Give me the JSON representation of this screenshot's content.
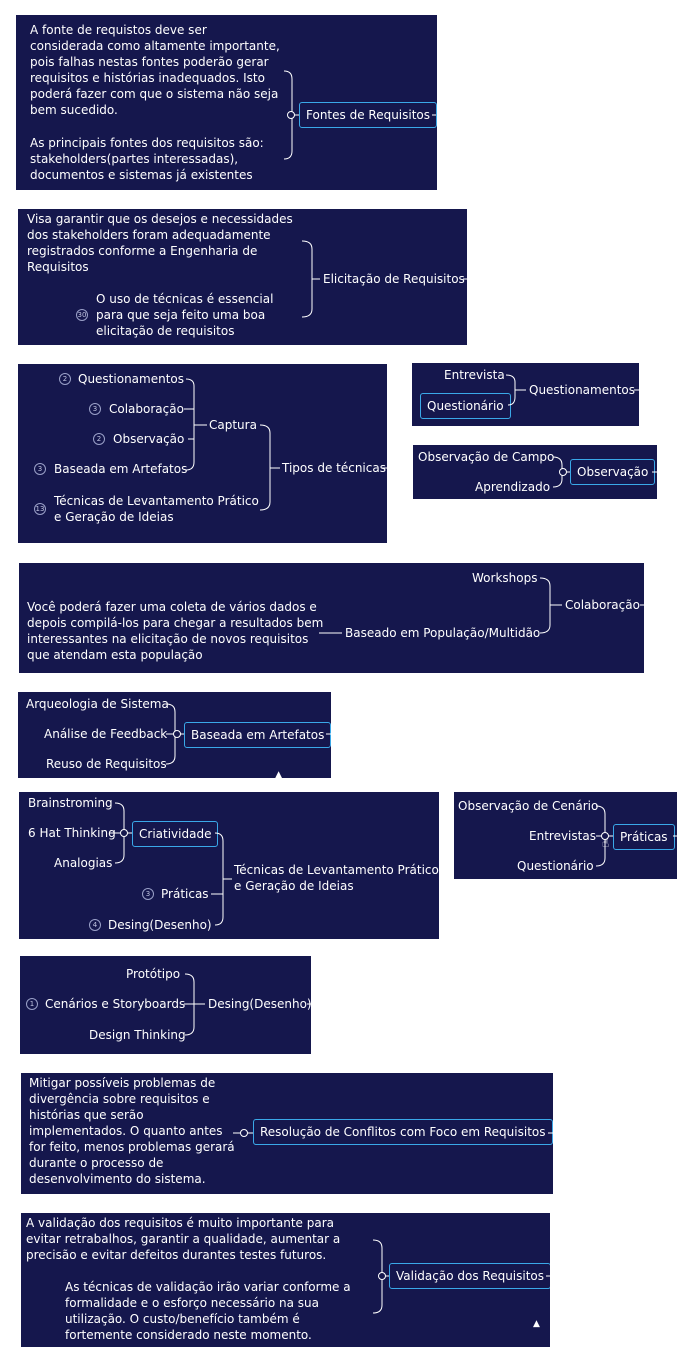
{
  "p1": {
    "node": "Fontes de Requisitos",
    "text1": "A fonte de requistos deve ser considerada como altamente importante, pois falhas nestas fontes poderão gerar requisitos e histórias inadequados. Isto poderá fazer com que o sistema não seja bem sucedido.",
    "text2": "As principais fontes dos requisitos são: stakeholders(partes interessadas), documentos e sistemas já existentes"
  },
  "p2": {
    "node": "Elicitação de Requisitos",
    "text1": "Visa garantir que os desejos e necessidades dos stakeholders foram adequadamente registrados conforme a Engenharia de Requisitos",
    "text2": "O uso de técnicas é essencial para que seja feito uma boa elicitação de requisitos",
    "badge": "30"
  },
  "p3": {
    "root": "Tipos de técnicas",
    "captura": "Captura",
    "tecnicas": "Técnicas de Levantamento Prático e Geração de Ideias",
    "items": [
      {
        "label": "Questionamentos",
        "badge": "2"
      },
      {
        "label": "Colaboração",
        "badge": "3"
      },
      {
        "label": "Observação",
        "badge": "2"
      },
      {
        "label": "Baseada em Artefatos",
        "badge": "3"
      }
    ],
    "tec_badge": "13"
  },
  "p4": {
    "node": "Questionamentos",
    "child1": "Entrevista",
    "child2": "Questionário"
  },
  "p5": {
    "node": "Observação",
    "child1": "Observação de Campo",
    "child2": "Aprendizado"
  },
  "p6": {
    "node": "Colaboração",
    "child1": "Workshops",
    "child2": "Baseado em População/Multidão",
    "text": "Você poderá fazer uma coleta de vários dados e depois compilá-los para chegar a resultados bem interessantes na elicitação de novos requisitos que atendam esta população"
  },
  "p7": {
    "node": "Baseada em Artefatos",
    "children": [
      "Arqueologia de Sistema",
      "Análise de Feedback",
      "Reuso de Requisitos"
    ]
  },
  "p8": {
    "root": "Técnicas de Levantamento Prático e Geração de Ideias",
    "criatividade": "Criatividade",
    "children": [
      "Brainstroming",
      "6 Hat Thinking",
      "Analogias"
    ],
    "praticas": "Práticas",
    "praticas_badge": "3",
    "desing": "Desing(Desenho)",
    "desing_badge": "4"
  },
  "p9": {
    "node": "Práticas",
    "children": [
      "Observação de Cenário",
      "Entrevistas",
      "Questionário"
    ]
  },
  "p10": {
    "node": "Desing(Desenho)",
    "children": [
      "Protótipo",
      "Cenários e Storyboards",
      "Design Thinking"
    ],
    "badge": "1"
  },
  "p11": {
    "node": "Resolução de Conflitos com Foco em Requisitos",
    "text": "Mitigar possíveis problemas de divergência sobre requisitos e histórias que serão implementados. O quanto antes for feito, menos problemas gerará durante o processo de desenvolvimento do sistema."
  },
  "p12": {
    "node": "Validação dos Requisitos",
    "text1": "A validação dos requisitos é muito importante para evitar retrabalhos, garantir a qualidade, aumentar a precisão e evitar defeitos durantes testes futuros.",
    "text2": "As técnicas de validação irão variar conforme a formalidade e o esforço necessário na sua utilização. O custo/benefício também é fortemente considerado neste momento."
  },
  "colors": {
    "panel": "#15174d",
    "node_border": "#3aa8e8",
    "text": "#ffffff"
  }
}
